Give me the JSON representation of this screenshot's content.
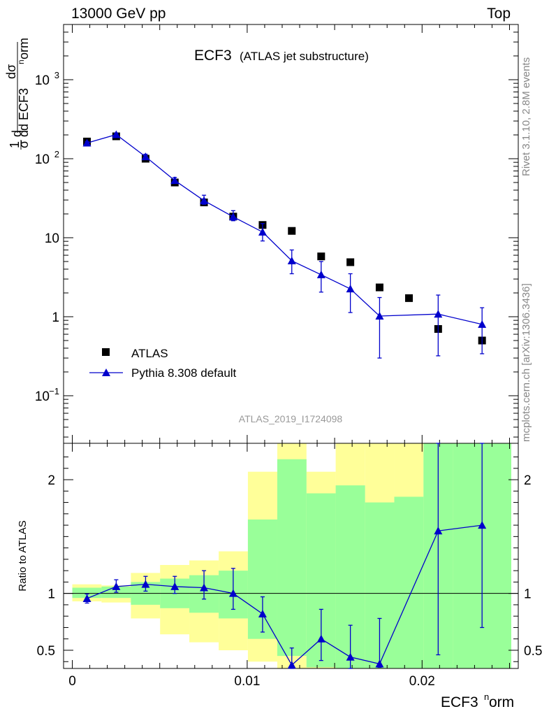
{
  "header": {
    "left": "13000 GeV pp",
    "right": "Top"
  },
  "watermarks": {
    "rivet": "Rivet 3.1.10,  2.8M events",
    "mcplots": "mcplots.cern.ch [arXiv:1306.3436]"
  },
  "chart_data": [
    {
      "type": "scatter",
      "panel": "main",
      "title": "ECF3",
      "subtitle": "(ATLAS jet substructure)",
      "ylabel_parts": [
        "1",
        "σ",
        "dσ",
        "d",
        "d ECF3",
        "n",
        "orm"
      ],
      "analysis_tag": "ATLAS_2019_I1724098",
      "yscale": "log",
      "ylim": [
        0.025,
        5000
      ],
      "xlim": [
        -0.0005,
        0.0255
      ],
      "y_ticks": [
        {
          "value": 0.1,
          "base": "10",
          "exp": "−1"
        },
        {
          "value": 1,
          "base": "1",
          "exp": ""
        },
        {
          "value": 10,
          "base": "10",
          "exp": ""
        },
        {
          "value": 100,
          "base": "10",
          "exp": "2"
        },
        {
          "value": 1000,
          "base": "10",
          "exp": "3"
        }
      ],
      "legend_position": "bottom-left",
      "series": [
        {
          "name": "ATLAS",
          "marker": "square",
          "color": "#000000",
          "x": [
            0.00084,
            0.00251,
            0.00419,
            0.00586,
            0.00753,
            0.0092,
            0.01088,
            0.01255,
            0.01423,
            0.0159,
            0.01757,
            0.01925,
            0.02092,
            0.02343
          ],
          "y": [
            165,
            192,
            100,
            50,
            28,
            18.5,
            14.5,
            12.2,
            5.8,
            4.9,
            2.35,
            1.72,
            0.7,
            0.5
          ]
        },
        {
          "name": "Pythia 8.308 default",
          "marker": "triangle",
          "color": "#0000cc",
          "x": [
            0.00084,
            0.00251,
            0.00419,
            0.00586,
            0.00753,
            0.0092,
            0.01088,
            0.01255,
            0.01423,
            0.0159,
            0.01757,
            0.02092,
            0.02343
          ],
          "y": [
            158,
            202,
            106,
            53,
            29.5,
            18.4,
            11.8,
            5.1,
            3.4,
            2.25,
            1.02,
            1.08,
            0.8
          ],
          "err_lo": [
            7,
            8,
            7,
            4,
            3,
            2,
            2.7,
            1.6,
            1.35,
            1.12,
            0.72,
            0.76,
            0.46
          ],
          "err_hi": [
            7,
            8,
            8,
            5,
            5,
            3.6,
            3.3,
            1.9,
            1.6,
            1.25,
            0.73,
            0.8,
            0.5
          ]
        }
      ]
    },
    {
      "type": "line",
      "panel": "ratio",
      "ylabel": "Ratio to ATLAS",
      "xlabel_parts": [
        "ECF3",
        "n",
        "orm"
      ],
      "ylim": [
        0.34,
        2.32
      ],
      "xlim": [
        -0.0005,
        0.0255
      ],
      "x_ticks": [
        {
          "value": 0,
          "label": "0"
        },
        {
          "value": 0.01,
          "label": "0.01"
        },
        {
          "value": 0.02,
          "label": "0.02"
        }
      ],
      "y_ticks": [
        {
          "value": 0.5,
          "label": "0.5"
        },
        {
          "value": 1,
          "label": "1"
        },
        {
          "value": 2,
          "label": "2"
        }
      ],
      "bins": [
        0,
        0.00167,
        0.00335,
        0.00502,
        0.00669,
        0.00837,
        0.01004,
        0.01172,
        0.01339,
        0.01506,
        0.01674,
        0.01841,
        0.02008,
        0.02176,
        0.0251
      ],
      "band_stat": {
        "color": "#99ff99",
        "lo": [
          0.96,
          0.96,
          0.9,
          0.87,
          0.83,
          0.78,
          0.6,
          0.45,
          0.35,
          0.34,
          0.34,
          0.34,
          0.34,
          0.34
        ],
        "hi": [
          1.05,
          1.06,
          1.1,
          1.13,
          1.16,
          1.2,
          1.65,
          2.18,
          1.88,
          1.95,
          1.8,
          1.85,
          2.32,
          2.32
        ]
      },
      "band_total": {
        "color": "#ffff99",
        "lo": [
          0.93,
          0.92,
          0.78,
          0.64,
          0.57,
          0.5,
          0.4,
          0.34,
          0.34,
          0.34,
          0.34,
          0.34,
          0.34,
          0.34
        ],
        "hi": [
          1.08,
          1.07,
          1.18,
          1.25,
          1.29,
          1.37,
          2.07,
          2.32,
          2.07,
          2.32,
          2.32,
          2.32,
          2.32,
          2.32
        ]
      },
      "series": [
        {
          "name": "Pythia 8.308 default",
          "color": "#0000cc",
          "x": [
            0.00084,
            0.00251,
            0.00419,
            0.00586,
            0.00753,
            0.0092,
            0.01088,
            0.01255,
            0.01423,
            0.0159,
            0.01757,
            0.02092,
            0.02343
          ],
          "y": [
            0.955,
            1.06,
            1.08,
            1.06,
            1.05,
            1.0,
            0.82,
            0.37,
            0.6,
            0.44,
            0.38,
            1.55,
            1.6
          ],
          "err_lo": [
            0.04,
            0.05,
            0.06,
            0.06,
            0.1,
            0.14,
            0.16,
            0.05,
            0.19,
            0.19,
            0.03,
            1.09,
            0.9
          ],
          "err_hi": [
            0.04,
            0.06,
            0.07,
            0.09,
            0.15,
            0.22,
            0.15,
            0.15,
            0.26,
            0.28,
            0.4,
            0.77,
            0.72
          ]
        }
      ]
    }
  ]
}
